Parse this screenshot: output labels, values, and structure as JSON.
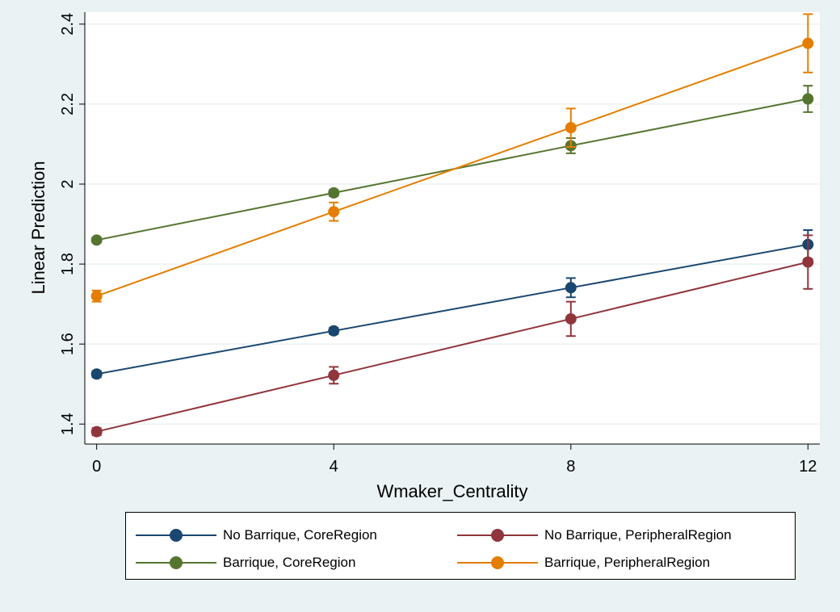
{
  "chart_data": {
    "type": "line",
    "title": "",
    "xlabel": "Wmaker_Centrality",
    "ylabel": "Linear Prediction",
    "x": [
      0,
      4,
      8,
      12
    ],
    "xticks": [
      0,
      4,
      8,
      12
    ],
    "xlim": [
      -0.2,
      12.2
    ],
    "yticks": [
      1.4,
      1.6,
      1.8,
      2.0,
      2.2,
      2.4
    ],
    "ytick_labels": [
      "1.4",
      "1.6",
      "1.8",
      "2",
      "2.2",
      "2.4"
    ],
    "ylim": [
      1.35,
      2.43
    ],
    "grid": true,
    "legend_position": "bottom",
    "series": [
      {
        "name": "No Barrique, CoreRegion",
        "color": "#1a476f",
        "values": [
          1.525,
          1.633,
          1.741,
          1.849
        ],
        "ci_low": [
          1.517,
          1.625,
          1.717,
          1.813
        ],
        "ci_high": [
          1.533,
          1.641,
          1.765,
          1.885
        ]
      },
      {
        "name": "No Barrique, PeripheralRegion",
        "color": "#90353b",
        "values": [
          1.381,
          1.522,
          1.663,
          1.805
        ],
        "ci_low": [
          1.372,
          1.501,
          1.62,
          1.738
        ],
        "ci_high": [
          1.39,
          1.543,
          1.706,
          1.872
        ]
      },
      {
        "name": "Barrique, CoreRegion",
        "color": "#55752f",
        "values": [
          1.86,
          1.978,
          2.096,
          2.213
        ],
        "ci_low": [
          1.854,
          1.97,
          2.077,
          2.18
        ],
        "ci_high": [
          1.866,
          1.986,
          2.115,
          2.246
        ]
      },
      {
        "name": "Barrique, PeripheralRegion",
        "color": "#e37e00",
        "values": [
          1.72,
          1.931,
          2.141,
          2.352
        ],
        "ci_low": [
          1.706,
          1.908,
          2.093,
          2.279
        ],
        "ci_high": [
          1.734,
          1.954,
          2.189,
          2.425
        ]
      }
    ]
  },
  "legend_order": [
    0,
    1,
    2,
    3
  ]
}
